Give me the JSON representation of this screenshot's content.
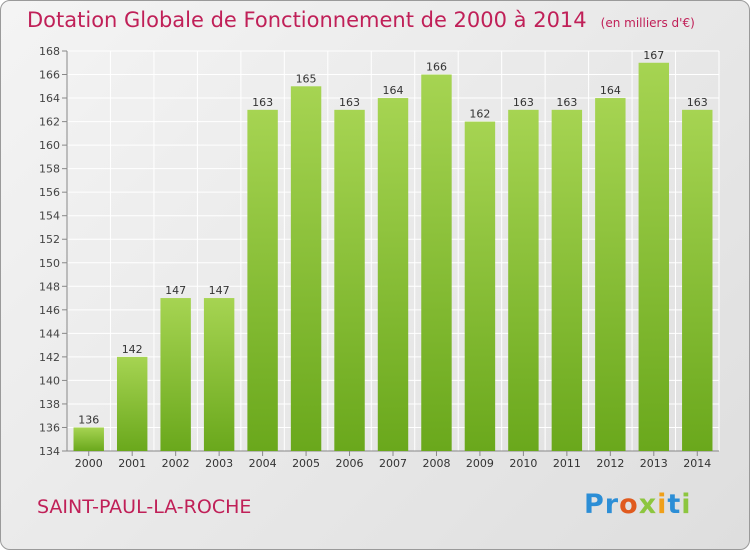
{
  "title": "Dotation Globale de Fonctionnement de 2000 à 2014",
  "unit_note": "(en milliers d'€)",
  "commune": "SAINT-PAUL-LA-ROCHE",
  "logo": {
    "letters": [
      "P",
      "r",
      "o",
      "x",
      "i",
      "t",
      "i"
    ],
    "colors": [
      "#2c8ed6",
      "#2c8ed6",
      "#e05a1e",
      "#8dc63f",
      "#f0a01a",
      "#2c8ed6",
      "#8dc63f"
    ]
  },
  "colors": {
    "bar_light": "#a6d452",
    "bar_dark": "#6aa81c",
    "title": "#c02058",
    "grid": "#ffffff"
  },
  "chart_data": {
    "type": "bar",
    "categories": [
      "2000",
      "2001",
      "2002",
      "2003",
      "2004",
      "2005",
      "2006",
      "2007",
      "2008",
      "2009",
      "2010",
      "2011",
      "2012",
      "2013",
      "2014"
    ],
    "values": [
      136,
      142,
      147,
      147,
      163,
      165,
      163,
      164,
      166,
      162,
      163,
      163,
      164,
      167,
      163
    ],
    "ylim": [
      134,
      168
    ],
    "yticks": [
      134,
      136,
      138,
      140,
      142,
      144,
      146,
      148,
      150,
      152,
      154,
      156,
      158,
      160,
      162,
      164,
      166,
      168
    ],
    "grid": true,
    "data_labels": true
  }
}
